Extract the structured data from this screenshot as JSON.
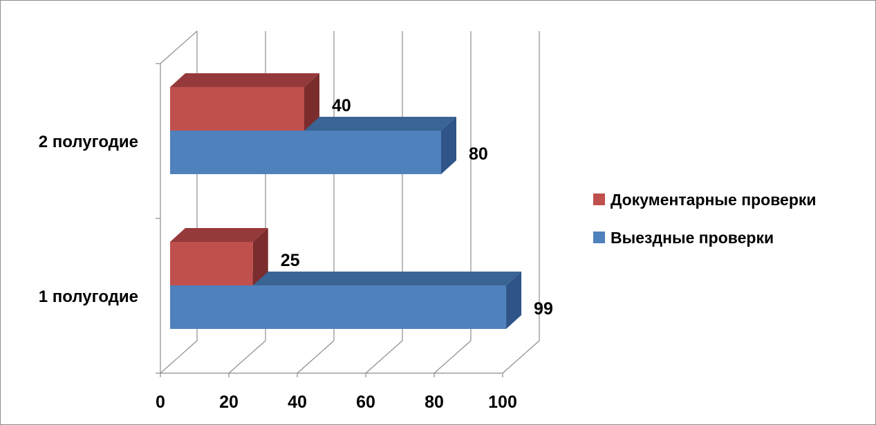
{
  "chart_data": {
    "type": "bar",
    "orientation": "horizontal",
    "style": "3d-clustered",
    "categories": [
      "1 полугодие",
      "2 полугодие"
    ],
    "series": [
      {
        "name": "Выездные проверки",
        "values": [
          99,
          80
        ],
        "color": "#4f81bd",
        "top_color": "#3a6494",
        "side_color": "#2f5487"
      },
      {
        "name": "Документарные проверки",
        "values": [
          25,
          40
        ],
        "color": "#c0504d",
        "top_color": "#96393a",
        "side_color": "#7b2d2d"
      }
    ],
    "xlim": [
      0,
      100
    ],
    "xticks": [
      "0",
      "20",
      "40",
      "60",
      "80",
      "100"
    ],
    "grid": true,
    "legend_position": "right",
    "legend_order": [
      "Документарные проверки",
      "Выездные проверки"
    ]
  }
}
